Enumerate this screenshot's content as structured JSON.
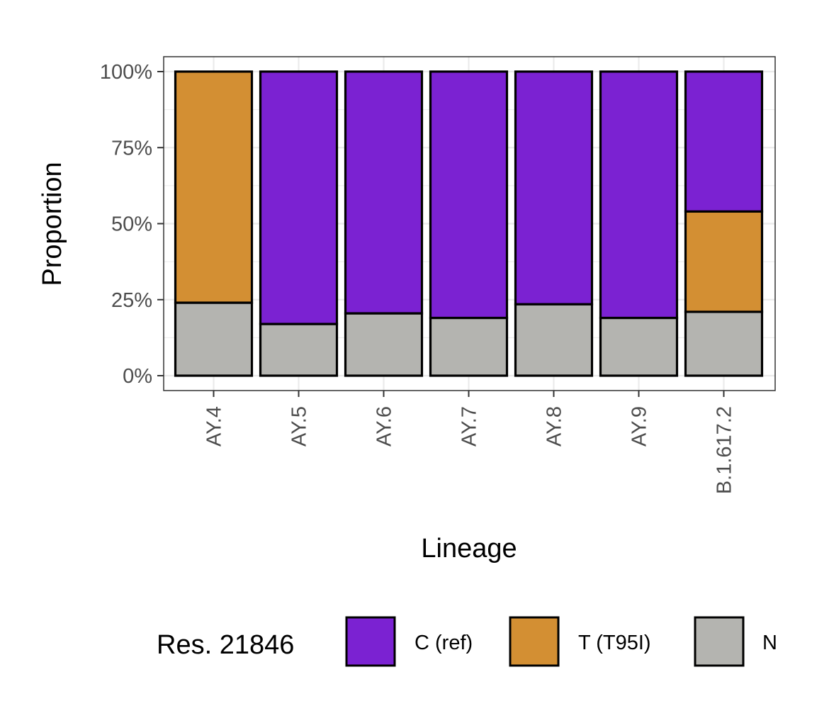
{
  "chart_data": {
    "type": "bar",
    "stacked": true,
    "categories": [
      "AY.4",
      "AY.5",
      "AY.6",
      "AY.7",
      "AY.8",
      "AY.9",
      "B.1.617.2"
    ],
    "series": [
      {
        "name": "N",
        "color": "#b4b4b0",
        "values": [
          24,
          17,
          20.5,
          19,
          23.5,
          19,
          21
        ]
      },
      {
        "name": "T (T95I)",
        "color": "#d38f33",
        "values": [
          76,
          0,
          0,
          0,
          0,
          0,
          33
        ]
      },
      {
        "name": "C (ref)",
        "color": "#7b22d2",
        "values": [
          0,
          83,
          79.5,
          81,
          76.5,
          81,
          46
        ]
      }
    ],
    "y_ticks": [
      0,
      25,
      50,
      75,
      100
    ],
    "y_tick_labels": [
      "0%",
      "25%",
      "50%",
      "75%",
      "100%"
    ],
    "ylim": [
      0,
      100
    ],
    "xlabel": "Lineage",
    "ylabel": "Proportion",
    "grid": true,
    "legend": {
      "title": "Res. 21846",
      "position": "bottom",
      "items": [
        {
          "label": "C (ref)",
          "color": "#7b22d2"
        },
        {
          "label": "T (T95I)",
          "color": "#d38f33"
        },
        {
          "label": "N",
          "color": "#b4b4b0"
        }
      ]
    }
  }
}
